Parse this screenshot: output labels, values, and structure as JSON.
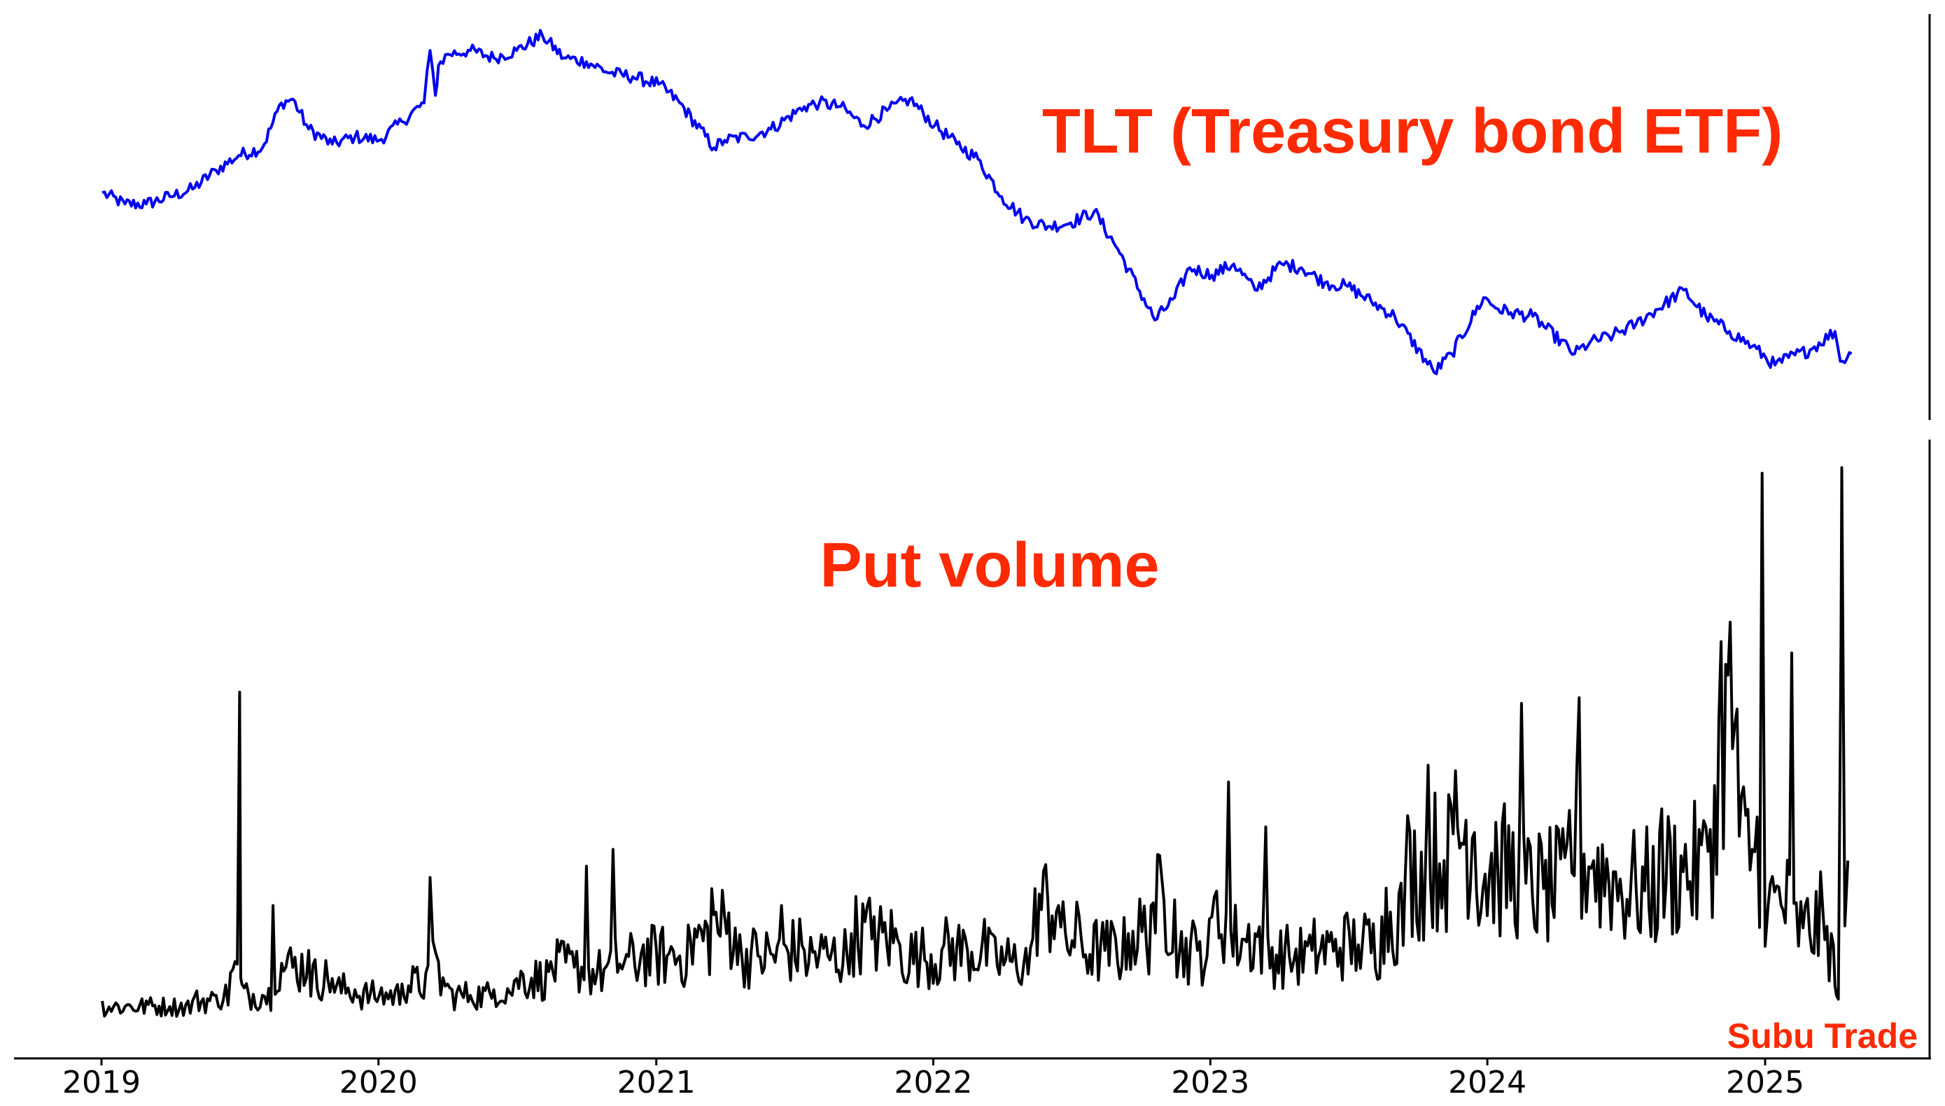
{
  "colors": {
    "label_red": "#ff2a00",
    "tlt_line": "#0000ee",
    "volume_line": "#000000",
    "axis": "#000000"
  },
  "watermark": "Subu Trade",
  "chart_data": [
    {
      "type": "line",
      "title": "TLT (Treasury bond ETF)",
      "xlabel": "",
      "ylabel": "",
      "x_type": "date",
      "xlim": [
        "2019-01-01",
        "2025-07-01"
      ],
      "xticks": [
        "2019",
        "2020",
        "2021",
        "2022",
        "2023",
        "2024",
        "2025"
      ],
      "yticks": [],
      "ylim": [
        0,
        100
      ],
      "grid": false,
      "series": [
        {
          "color": "#0000ee",
          "points": [
            [
              "2019-01-02",
              56
            ],
            [
              "2019-02-01",
              53
            ],
            [
              "2019-03-01",
              53
            ],
            [
              "2019-04-01",
              55
            ],
            [
              "2019-05-01",
              57
            ],
            [
              "2019-06-01",
              62
            ],
            [
              "2019-07-01",
              66
            ],
            [
              "2019-08-01",
              68
            ],
            [
              "2019-08-26",
              80
            ],
            [
              "2019-09-10",
              81
            ],
            [
              "2019-10-01",
              73
            ],
            [
              "2019-11-01",
              69
            ],
            [
              "2019-12-01",
              71
            ],
            [
              "2020-01-02",
              70
            ],
            [
              "2020-02-01",
              75
            ],
            [
              "2020-03-01",
              80
            ],
            [
              "2020-03-09",
              94
            ],
            [
              "2020-03-16",
              82
            ],
            [
              "2020-03-20",
              90
            ],
            [
              "2020-04-01",
              93
            ],
            [
              "2020-05-01",
              94
            ],
            [
              "2020-06-01",
              92
            ],
            [
              "2020-07-01",
              94
            ],
            [
              "2020-08-04",
              98
            ],
            [
              "2020-09-01",
              92
            ],
            [
              "2020-10-01",
              91
            ],
            [
              "2020-11-01",
              88
            ],
            [
              "2020-12-01",
              87
            ],
            [
              "2021-01-04",
              85
            ],
            [
              "2021-02-01",
              80
            ],
            [
              "2021-03-18",
              68
            ],
            [
              "2021-04-01",
              70
            ],
            [
              "2021-05-01",
              71
            ],
            [
              "2021-06-01",
              73
            ],
            [
              "2021-07-15",
              79
            ],
            [
              "2021-08-04",
              80
            ],
            [
              "2021-09-01",
              79
            ],
            [
              "2021-10-01",
              74
            ],
            [
              "2021-11-01",
              78
            ],
            [
              "2021-12-01",
              81
            ],
            [
              "2022-01-03",
              74
            ],
            [
              "2022-02-01",
              69
            ],
            [
              "2022-03-01",
              65
            ],
            [
              "2022-04-01",
              55
            ],
            [
              "2022-05-01",
              49
            ],
            [
              "2022-06-01",
              47
            ],
            [
              "2022-07-01",
              48
            ],
            [
              "2022-08-01",
              51
            ],
            [
              "2022-09-01",
              41
            ],
            [
              "2022-10-20",
              22
            ],
            [
              "2022-11-15",
              28
            ],
            [
              "2022-12-05",
              36
            ],
            [
              "2023-01-03",
              34
            ],
            [
              "2023-02-01",
              37
            ],
            [
              "2023-03-01",
              30
            ],
            [
              "2023-04-05",
              37
            ],
            [
              "2023-05-01",
              36
            ],
            [
              "2023-06-01",
              32
            ],
            [
              "2023-07-01",
              31
            ],
            [
              "2023-08-01",
              27
            ],
            [
              "2023-09-01",
              23
            ],
            [
              "2023-10-23",
              8
            ],
            [
              "2023-11-15",
              13
            ],
            [
              "2023-12-27",
              28
            ],
            [
              "2024-01-15",
              25
            ],
            [
              "2024-02-01",
              24
            ],
            [
              "2024-03-01",
              23
            ],
            [
              "2024-04-25",
              13
            ],
            [
              "2024-05-15",
              16
            ],
            [
              "2024-06-15",
              18
            ],
            [
              "2024-07-15",
              21
            ],
            [
              "2024-09-16",
              30
            ],
            [
              "2024-10-15",
              23
            ],
            [
              "2024-11-15",
              19
            ],
            [
              "2024-12-15",
              15
            ],
            [
              "2025-01-14",
              10
            ],
            [
              "2025-02-01",
              12
            ],
            [
              "2025-03-01",
              14
            ],
            [
              "2025-04-03",
              19
            ],
            [
              "2025-04-10",
              11
            ],
            [
              "2025-04-25",
              13
            ]
          ]
        }
      ]
    },
    {
      "type": "line",
      "title": "Put volume",
      "xlabel": "",
      "ylabel": "",
      "x_type": "date",
      "xlim": [
        "2019-01-01",
        "2025-07-01"
      ],
      "xticks": [
        "2019",
        "2020",
        "2021",
        "2022",
        "2023",
        "2024",
        "2025"
      ],
      "yticks": [],
      "ylim": [
        0,
        100
      ],
      "grid": false,
      "series": [
        {
          "color": "#000000",
          "points": [
            [
              "2019-01-02",
              5
            ],
            [
              "2019-02-01",
              4
            ],
            [
              "2019-03-01",
              5
            ],
            [
              "2019-04-01",
              4
            ],
            [
              "2019-05-01",
              5
            ],
            [
              "2019-06-01",
              6
            ],
            [
              "2019-06-20",
              10
            ],
            [
              "2019-07-02",
              60
            ],
            [
              "2019-07-05",
              8
            ],
            [
              "2019-08-01",
              6
            ],
            [
              "2019-08-15",
              22
            ],
            [
              "2019-09-01",
              11
            ],
            [
              "2019-10-01",
              14
            ],
            [
              "2019-11-01",
              9
            ],
            [
              "2019-12-01",
              7
            ],
            [
              "2020-01-02",
              6
            ],
            [
              "2020-02-01",
              8
            ],
            [
              "2020-03-09",
              27
            ],
            [
              "2020-03-20",
              12
            ],
            [
              "2020-04-01",
              8
            ],
            [
              "2020-05-01",
              6
            ],
            [
              "2020-06-01",
              7
            ],
            [
              "2020-07-01",
              9
            ],
            [
              "2020-08-15",
              12
            ],
            [
              "2020-09-15",
              11
            ],
            [
              "2020-10-01",
              29
            ],
            [
              "2020-10-15",
              10
            ],
            [
              "2020-11-05",
              32
            ],
            [
              "2020-11-20",
              12
            ],
            [
              "2020-12-15",
              15
            ],
            [
              "2021-01-15",
              13
            ],
            [
              "2021-02-15",
              16
            ],
            [
              "2021-03-15",
              25
            ],
            [
              "2021-04-15",
              18
            ],
            [
              "2021-05-15",
              13
            ],
            [
              "2021-06-15",
              22
            ],
            [
              "2021-07-15",
              14
            ],
            [
              "2021-08-15",
              13
            ],
            [
              "2021-09-15",
              17
            ],
            [
              "2021-10-15",
              20
            ],
            [
              "2021-11-15",
              16
            ],
            [
              "2021-12-15",
              13
            ],
            [
              "2022-01-15",
              15
            ],
            [
              "2022-02-15",
              14
            ],
            [
              "2022-03-15",
              18
            ],
            [
              "2022-04-15",
              12
            ],
            [
              "2022-05-15",
              25
            ],
            [
              "2022-06-15",
              22
            ],
            [
              "2022-07-15",
              16
            ],
            [
              "2022-08-15",
              14
            ],
            [
              "2022-09-15",
              17
            ],
            [
              "2022-10-15",
              22
            ],
            [
              "2022-11-15",
              23
            ],
            [
              "2022-12-15",
              14
            ],
            [
              "2023-01-03",
              20
            ],
            [
              "2023-01-25",
              44
            ],
            [
              "2023-02-15",
              16
            ],
            [
              "2023-03-15",
              36
            ],
            [
              "2023-04-15",
              13
            ],
            [
              "2023-05-15",
              14
            ],
            [
              "2023-06-15",
              16
            ],
            [
              "2023-07-15",
              15
            ],
            [
              "2023-08-15",
              20
            ],
            [
              "2023-09-15",
              28
            ],
            [
              "2023-10-15",
              47
            ],
            [
              "2023-11-05",
              30
            ],
            [
              "2023-11-20",
              46
            ],
            [
              "2023-12-15",
              35
            ],
            [
              "2024-01-15",
              28
            ],
            [
              "2024-02-15",
              58
            ],
            [
              "2024-03-15",
              25
            ],
            [
              "2024-04-15",
              33
            ],
            [
              "2024-05-01",
              59
            ],
            [
              "2024-05-20",
              30
            ],
            [
              "2024-06-15",
              28
            ],
            [
              "2024-07-15",
              25
            ],
            [
              "2024-08-15",
              35
            ],
            [
              "2024-09-15",
              28
            ],
            [
              "2024-10-15",
              36
            ],
            [
              "2024-11-01",
              55
            ],
            [
              "2024-11-25",
              57
            ],
            [
              "2024-12-15",
              32
            ],
            [
              "2024-12-28",
              99
            ],
            [
              "2025-01-05",
              22
            ],
            [
              "2025-02-05",
              67
            ],
            [
              "2025-02-20",
              18
            ],
            [
              "2025-03-15",
              28
            ],
            [
              "2025-04-01",
              15
            ],
            [
              "2025-04-05",
              6
            ],
            [
              "2025-04-10",
              52
            ],
            [
              "2025-04-12",
              100
            ],
            [
              "2025-04-20",
              30
            ]
          ]
        }
      ]
    }
  ]
}
